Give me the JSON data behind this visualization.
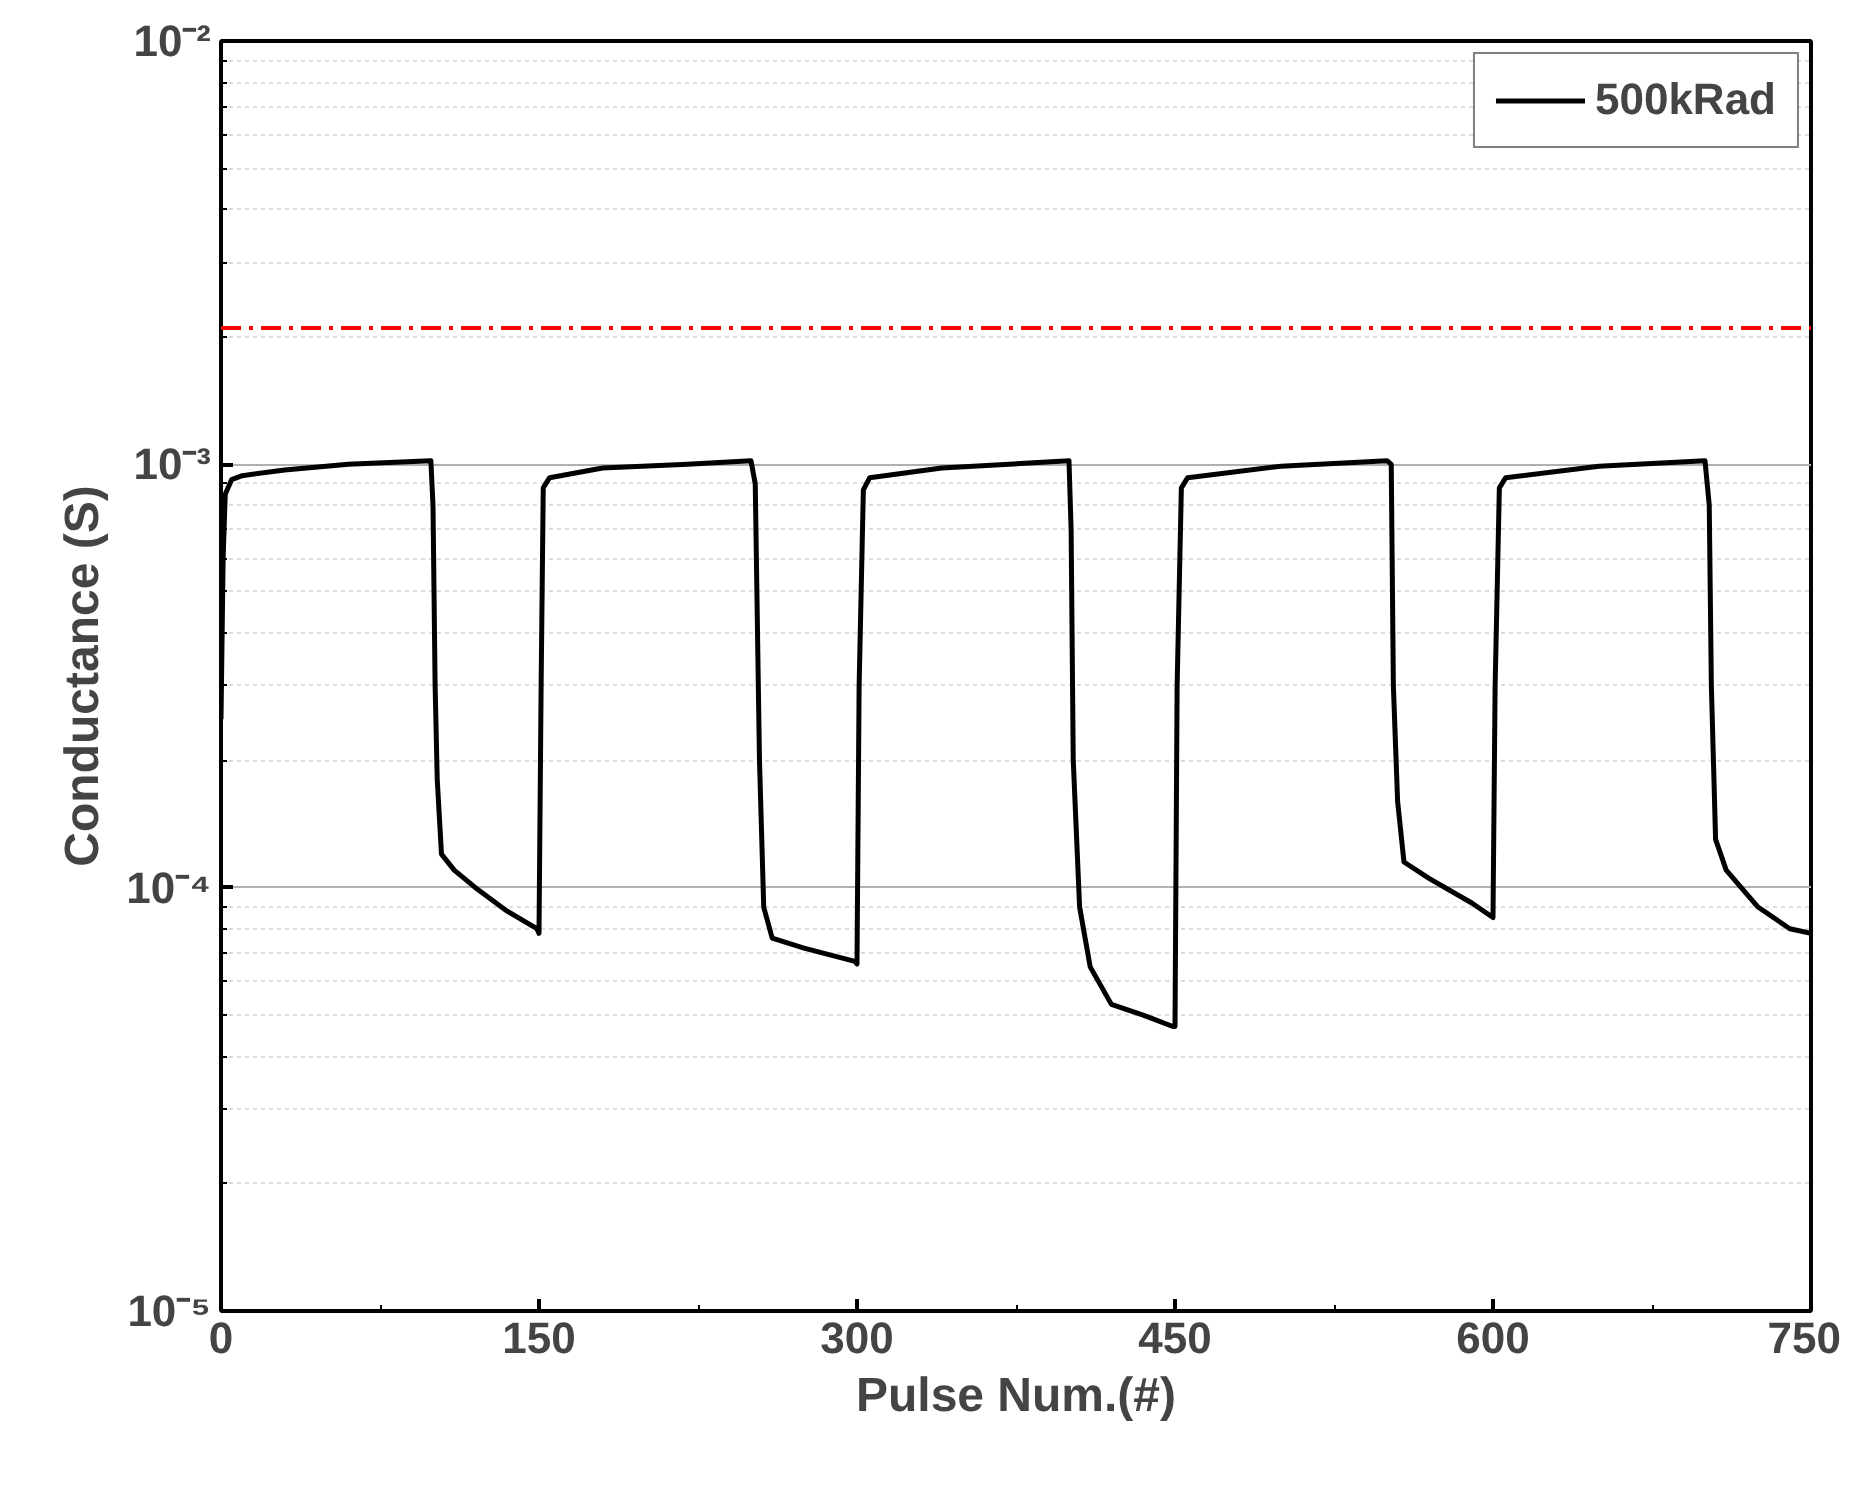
{
  "chart_data": {
    "type": "line",
    "xlabel": "Pulse Num.(#)",
    "ylabel": "Conductance (S)",
    "log": "y",
    "grid": true,
    "legend": "top right",
    "xlim": [
      0,
      750
    ],
    "xticks": [
      0,
      150,
      300,
      450,
      600,
      750
    ],
    "ylim": [
      1e-05,
      0.01
    ],
    "yticks": [
      {
        "value": 1e-05,
        "label": "10⁻⁵"
      },
      {
        "value": 0.0001,
        "label": "10⁻⁴"
      },
      {
        "value": 0.001,
        "label": "10⁻³"
      },
      {
        "value": 0.01,
        "label": "10⁻²"
      }
    ],
    "ref_lines": [
      {
        "axis": "y",
        "value": 0.0021,
        "label": null,
        "color": "#ff0000",
        "line_style": "dashdot"
      }
    ],
    "series": [
      {
        "name": "500kRad",
        "color": "#000000",
        "line_style": "solid",
        "x": [
          0,
          1,
          2,
          5,
          10,
          30,
          60,
          99,
          100,
          101,
          102,
          104,
          110,
          120,
          135,
          149,
          150,
          151,
          152,
          155,
          180,
          220,
          250,
          252,
          254,
          256,
          260,
          275,
          299,
          300,
          301,
          303,
          306,
          340,
          400,
          401,
          402,
          405,
          410,
          420,
          435,
          449,
          450,
          451,
          453,
          456,
          500,
          550,
          552,
          553,
          555,
          558,
          570,
          590,
          600,
          601,
          603,
          606,
          650,
          700,
          702,
          703,
          705,
          710,
          725,
          740,
          750
        ],
        "values": [
          0.00025,
          0.0006,
          0.00085,
          0.00092,
          0.00094,
          0.00097,
          0.001,
          0.00102,
          0.0008,
          0.0003,
          0.00018,
          0.00012,
          0.00011,
          0.0001,
          8.8e-05,
          8e-05,
          7.8e-05,
          0.0003,
          0.00088,
          0.00093,
          0.00098,
          0.001,
          0.00102,
          0.0009,
          0.0002,
          9e-05,
          7.6e-05,
          7.2e-05,
          6.7e-05,
          6.6e-05,
          0.0003,
          0.00087,
          0.00093,
          0.00098,
          0.00102,
          0.0007,
          0.0002,
          9e-05,
          6.5e-05,
          5.3e-05,
          5e-05,
          4.7e-05,
          4.7e-05,
          0.0003,
          0.00088,
          0.00093,
          0.00099,
          0.00102,
          0.001,
          0.0003,
          0.00016,
          0.000115,
          0.000105,
          9.2e-05,
          8.5e-05,
          0.0003,
          0.00088,
          0.00093,
          0.00099,
          0.00102,
          0.0008,
          0.0003,
          0.00013,
          0.00011,
          9e-05,
          8e-05,
          7.8e-05
        ]
      }
    ]
  }
}
